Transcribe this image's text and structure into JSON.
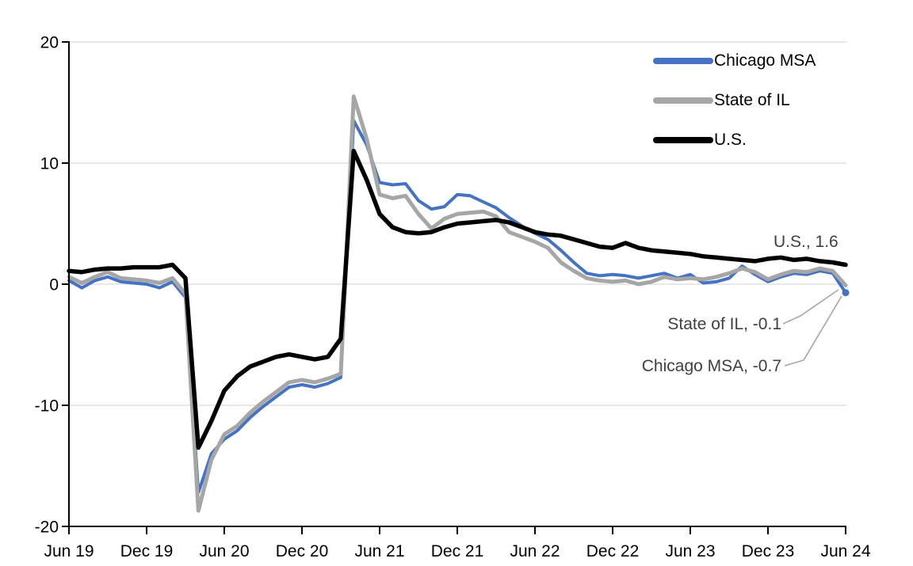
{
  "colors": {
    "chicago_msa": "#4472C4",
    "state_of_il": "#A6A6A6",
    "us": "#000000",
    "gridline": "#D9D9D9",
    "axis": "#000000",
    "leader": "#A6A6A6",
    "annotation_text": "#404040"
  },
  "legend": {
    "items": [
      {
        "label": "Chicago MSA",
        "color": "#4472C4"
      },
      {
        "label": "State of IL",
        "color": "#A6A6A6"
      },
      {
        "label": "U.S.",
        "color": "#000000"
      }
    ]
  },
  "annotations": [
    {
      "text": "U.S., 1.6",
      "series": "U.S."
    },
    {
      "text": "State of IL, -0.1",
      "series": "State of IL"
    },
    {
      "text": "Chicago MSA, -0.7",
      "series": "Chicago MSA"
    }
  ],
  "chart_data": {
    "type": "line",
    "title": "",
    "xlabel": "",
    "ylabel": "",
    "ylim": [
      -20,
      20
    ],
    "y_ticks": [
      20,
      10,
      0,
      -10,
      -20
    ],
    "grid": true,
    "legend_position": "top-right",
    "x_tick_labels": [
      "Jun 19",
      "Dec 19",
      "Jun 20",
      "Dec 20",
      "Jun 21",
      "Dec 21",
      "Jun 22",
      "Dec 22",
      "Jun 23",
      "Dec 23",
      "Jun 24"
    ],
    "x": [
      "Jun 19",
      "Jul 19",
      "Aug 19",
      "Sep 19",
      "Oct 19",
      "Nov 19",
      "Dec 19",
      "Jan 20",
      "Feb 20",
      "Mar 20",
      "Apr 20",
      "May 20",
      "Jun 20",
      "Jul 20",
      "Aug 20",
      "Sep 20",
      "Oct 20",
      "Nov 20",
      "Dec 20",
      "Jan 21",
      "Feb 21",
      "Mar 21",
      "Apr 21",
      "May 21",
      "Jun 21",
      "Jul 21",
      "Aug 21",
      "Sep 21",
      "Oct 21",
      "Nov 21",
      "Dec 21",
      "Jan 22",
      "Feb 22",
      "Mar 22",
      "Apr 22",
      "May 22",
      "Jun 22",
      "Jul 22",
      "Aug 22",
      "Sep 22",
      "Oct 22",
      "Nov 22",
      "Dec 22",
      "Jan 23",
      "Feb 23",
      "Mar 23",
      "Apr 23",
      "May 23",
      "Jun 23",
      "Jul 23",
      "Aug 23",
      "Sep 23",
      "Oct 23",
      "Nov 23",
      "Dec 23",
      "Jan 24",
      "Feb 24",
      "Mar 24",
      "Apr 24",
      "May 24",
      "Jun 24"
    ],
    "series": [
      {
        "name": "Chicago MSA",
        "color": "#4472C4",
        "width": 4,
        "end_marker": true,
        "last_value_label": -0.7,
        "values": [
          0.3,
          -0.3,
          0.3,
          0.6,
          0.2,
          0.1,
          0.0,
          -0.3,
          0.2,
          -1.1,
          -17.2,
          -14.0,
          -12.8,
          -12.1,
          -11.0,
          -10.1,
          -9.3,
          -8.5,
          -8.3,
          -8.5,
          -8.2,
          -7.7,
          13.5,
          11.5,
          8.4,
          8.2,
          8.3,
          6.9,
          6.2,
          6.4,
          7.4,
          7.3,
          6.8,
          6.3,
          5.5,
          4.8,
          4.2,
          3.7,
          2.8,
          1.8,
          0.9,
          0.7,
          0.8,
          0.7,
          0.5,
          0.7,
          0.9,
          0.5,
          0.8,
          0.1,
          0.2,
          0.5,
          1.5,
          0.8,
          0.2,
          0.6,
          0.9,
          0.8,
          1.1,
          0.9,
          -0.7
        ]
      },
      {
        "name": "State of IL",
        "color": "#A6A6A6",
        "width": 5,
        "end_marker": false,
        "last_value_label": -0.1,
        "values": [
          0.6,
          0.1,
          0.6,
          1.0,
          0.5,
          0.4,
          0.3,
          0.1,
          0.5,
          -0.8,
          -18.7,
          -14.5,
          -12.4,
          -11.7,
          -10.6,
          -9.7,
          -8.9,
          -8.1,
          -7.9,
          -8.1,
          -7.8,
          -7.4,
          15.5,
          12.0,
          7.4,
          7.1,
          7.3,
          5.8,
          4.6,
          5.4,
          5.8,
          5.9,
          6.0,
          5.6,
          4.3,
          3.9,
          3.5,
          3.0,
          1.8,
          1.1,
          0.5,
          0.3,
          0.2,
          0.3,
          0.0,
          0.2,
          0.6,
          0.4,
          0.5,
          0.4,
          0.6,
          0.9,
          1.3,
          1.0,
          0.4,
          0.8,
          1.1,
          1.0,
          1.3,
          1.1,
          -0.1
        ]
      },
      {
        "name": "U.S.",
        "color": "#000000",
        "width": 5.5,
        "end_marker": false,
        "last_value_label": 1.6,
        "values": [
          1.1,
          1.0,
          1.2,
          1.3,
          1.3,
          1.4,
          1.4,
          1.4,
          1.6,
          0.5,
          -13.5,
          -11.3,
          -8.8,
          -7.6,
          -6.8,
          -6.4,
          -6.0,
          -5.8,
          -6.0,
          -6.2,
          -6.0,
          -4.5,
          11.0,
          8.6,
          5.8,
          4.7,
          4.3,
          4.2,
          4.3,
          4.7,
          5.0,
          5.1,
          5.2,
          5.3,
          5.1,
          4.7,
          4.3,
          4.1,
          4.0,
          3.7,
          3.4,
          3.1,
          3.0,
          3.4,
          3.0,
          2.8,
          2.7,
          2.6,
          2.5,
          2.3,
          2.2,
          2.1,
          2.0,
          1.9,
          2.1,
          2.2,
          2.0,
          2.1,
          1.9,
          1.8,
          1.6
        ]
      }
    ]
  }
}
